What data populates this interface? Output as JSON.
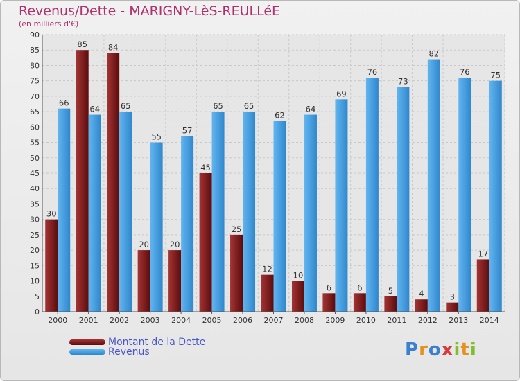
{
  "title": "Revenus/Dette - MARIGNY-LèS-REULLéE",
  "subtitle": "(en milliers d'€)",
  "logo": {
    "letters": [
      "P",
      "r",
      "o",
      "x",
      "i",
      "t",
      "i"
    ],
    "colors": [
      "#3a7fd0",
      "#e8901c",
      "#3a7fd0",
      "#d83a3a",
      "#7bbf2a",
      "#e8901c",
      "#7bbf2a"
    ]
  },
  "chart_data": {
    "type": "bar",
    "categories": [
      "2000",
      "2001",
      "2002",
      "2003",
      "2004",
      "2005",
      "2006",
      "2007",
      "2008",
      "2009",
      "2010",
      "2011",
      "2012",
      "2013",
      "2014"
    ],
    "series": [
      {
        "name": "Montant de la Dette",
        "color": "#7a1616",
        "values": [
          30,
          85,
          84,
          20,
          20,
          45,
          25,
          12,
          10,
          6,
          6,
          5,
          4,
          3,
          17
        ]
      },
      {
        "name": "Revenus",
        "color": "#3d9be0",
        "values": [
          66,
          64,
          65,
          55,
          57,
          65,
          65,
          62,
          64,
          69,
          76,
          73,
          82,
          76,
          75
        ]
      }
    ],
    "ylim": [
      0,
      90
    ],
    "yticks": [
      0,
      5,
      10,
      15,
      20,
      25,
      30,
      35,
      40,
      45,
      50,
      55,
      60,
      65,
      70,
      75,
      80,
      85,
      90
    ],
    "grid": true,
    "legend": "bottom-left"
  }
}
